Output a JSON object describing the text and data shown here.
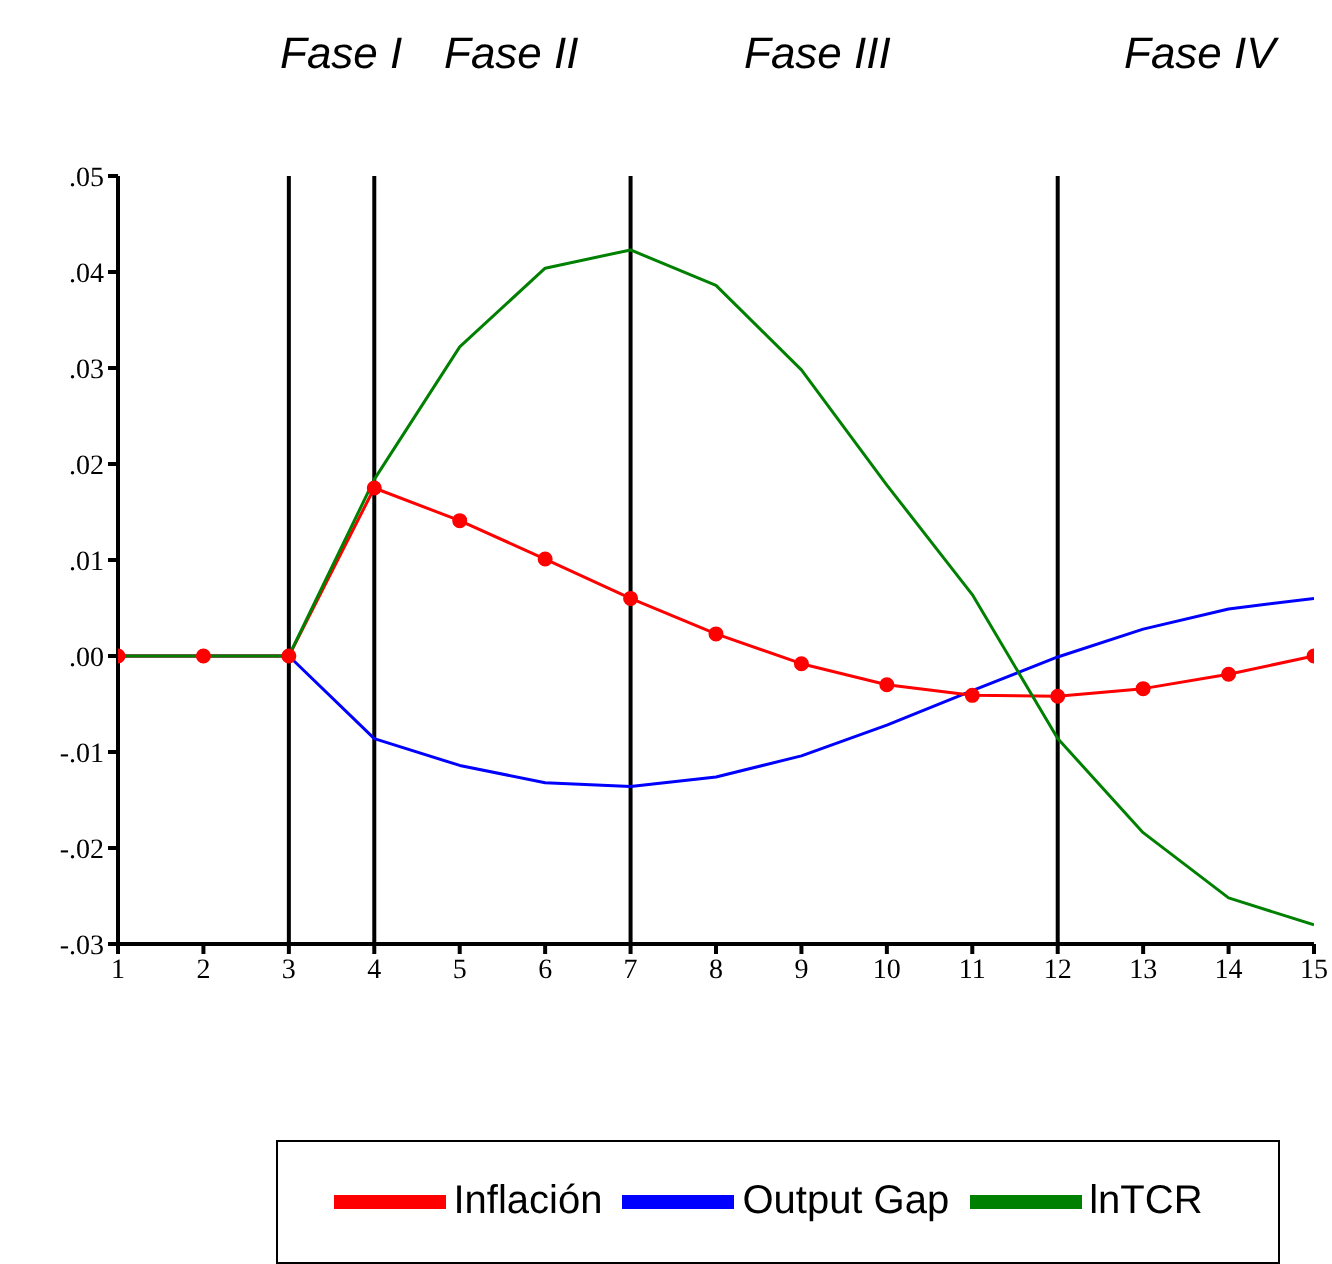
{
  "chart_data": {
    "type": "line",
    "x": [
      1,
      2,
      3,
      4,
      5,
      6,
      7,
      8,
      9,
      10,
      11,
      12,
      13,
      14,
      15
    ],
    "series": [
      {
        "name": "Output Gap",
        "color": "#0000ff",
        "values": [
          0,
          0,
          0,
          -0.0086,
          -0.0114,
          -0.0132,
          -0.0136,
          -0.0126,
          -0.0104,
          -0.0072,
          -0.0036,
          -0.0001,
          0.0028,
          0.0049,
          0.006
        ]
      },
      {
        "name": "Inflación",
        "color": "#ff0000",
        "marker": "circle",
        "values": [
          0,
          0,
          0,
          0.0175,
          0.0141,
          0.0101,
          0.006,
          0.0023,
          -0.0008,
          -0.003,
          -0.0041,
          -0.0042,
          -0.0034,
          -0.0019,
          0
        ]
      },
      {
        "name": "lnTCR",
        "color": "#008000",
        "values": [
          0,
          0,
          0,
          0.0184,
          0.0322,
          0.0404,
          0.0423,
          0.0386,
          0.0298,
          0.0178,
          0.0064,
          -0.0086,
          -0.0184,
          -0.0252,
          -0.028
        ]
      }
    ],
    "xlim": [
      1,
      15
    ],
    "xticks": [
      1,
      2,
      3,
      4,
      5,
      6,
      7,
      8,
      9,
      10,
      11,
      12,
      13,
      14,
      15
    ],
    "ylim": [
      -0.03,
      0.05
    ],
    "yticks": [
      {
        "value": -0.03,
        "label": "-.03"
      },
      {
        "value": -0.02,
        "label": "-.02"
      },
      {
        "value": -0.01,
        "label": "-.01"
      },
      {
        "value": 0,
        "label": ".00"
      },
      {
        "value": 0.01,
        "label": ".01"
      },
      {
        "value": 0.02,
        "label": ".02"
      },
      {
        "value": 0.03,
        "label": ".03"
      },
      {
        "value": 0.04,
        "label": ".04"
      },
      {
        "value": 0.05,
        "label": ".05"
      }
    ],
    "ref_lines": [
      {
        "axis": "x",
        "value": 3,
        "color": "#000000"
      },
      {
        "axis": "x",
        "value": 4,
        "color": "#000000"
      },
      {
        "axis": "x",
        "value": 7,
        "color": "#000000"
      },
      {
        "axis": "x",
        "value": 12,
        "color": "#000000"
      }
    ],
    "annotations": [
      "Fase I",
      "Fase II",
      "Fase III",
      "Fase IV"
    ],
    "legend": "bottom"
  }
}
